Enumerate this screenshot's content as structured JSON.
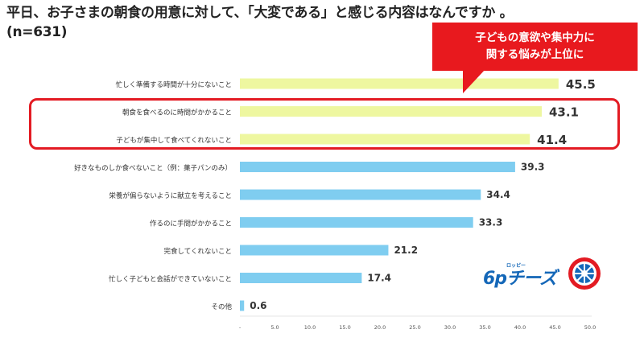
{
  "header": {
    "title_line1": "平日、お子さまの朝食の用意に対して、「大変である」と感じる内容はなんですか 。",
    "title_line2": "(n=631)"
  },
  "callout": {
    "line1": "子どもの意欲や集中力に",
    "line2": "関する悩みが上位に"
  },
  "logo": {
    "text": "6pチーズ",
    "sub": "ロッピー"
  },
  "colors": {
    "highlight_bar": "#eef7a0",
    "normal_bar": "#7fcdf0",
    "accent_red": "#e31b23"
  },
  "chart_data": {
    "type": "bar",
    "orientation": "horizontal",
    "title": "平日、お子さまの朝食の用意に対して、「大変である」と感じる内容はなんですか 。",
    "subtitle": "(n=631)",
    "categories": [
      "忙しく準備する時間が十分にないこと",
      "朝食を食べるのに時間がかかること",
      "子どもが集中して食べてくれないこと",
      "好きなものしか食べないこと（例：菓子パンのみ）",
      "栄養が偏らないように献立を考えること",
      "作るのに手間がかかること",
      "完食してくれないこと",
      "忙しく子どもと会話ができていないこと",
      "その他"
    ],
    "values": [
      45.5,
      43.1,
      41.4,
      39.3,
      34.4,
      33.3,
      21.2,
      17.4,
      0.6
    ],
    "value_labels": [
      "45.5",
      "43.1",
      "41.4",
      "39.3",
      "34.4",
      "33.3",
      "21.2",
      "17.4",
      "0.6"
    ],
    "highlighted": [
      true,
      true,
      true,
      false,
      false,
      false,
      false,
      false,
      false
    ],
    "xlim": [
      0,
      50
    ],
    "xticks": [
      "-",
      "5.0",
      "10.0",
      "15.0",
      "20.0",
      "25.0",
      "30.0",
      "35.0",
      "40.0",
      "45.0",
      "50.0"
    ],
    "xtick_values": [
      0,
      5,
      10,
      15,
      20,
      25,
      30,
      35,
      40,
      45,
      50
    ],
    "xlabel": "",
    "ylabel": "",
    "grid": false
  }
}
